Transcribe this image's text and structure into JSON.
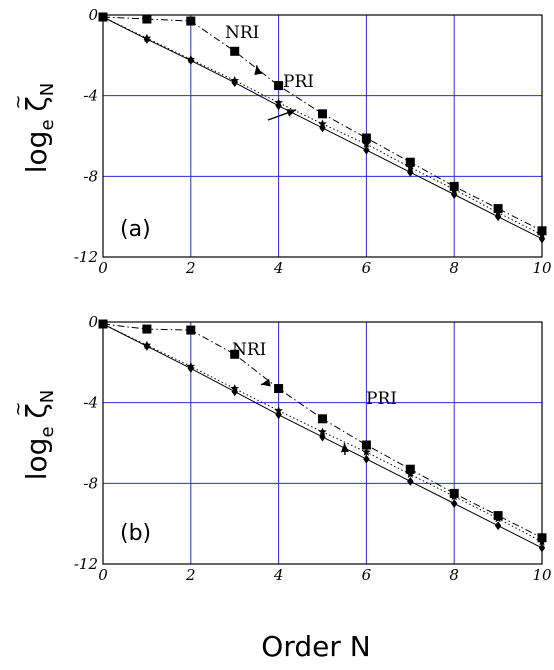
{
  "figure": {
    "xlabel": "Order  N",
    "ylabel_main": "log",
    "ylabel_sub": "e",
    "ylabel_symbol": "ζ",
    "ylabel_tilde": "~",
    "ylabel_index": "N"
  },
  "colors": {
    "grid": "#2b2bd6",
    "frame": "#000000",
    "marker": "#000000"
  },
  "chart_data": [
    {
      "type": "line",
      "panel_label": "(a)",
      "x": [
        0,
        1,
        2,
        3,
        4,
        5,
        6,
        7,
        8,
        9,
        10
      ],
      "xlim": [
        0,
        10
      ],
      "ylim": [
        -12,
        0
      ],
      "xticks": [
        "0",
        "2",
        "4",
        "6",
        "8",
        "10"
      ],
      "yticks": [
        "0",
        "-4",
        "-8",
        "-12"
      ],
      "grid": true,
      "series": [
        {
          "marker": "square",
          "style": "dash-dot",
          "values": [
            -0.1,
            -0.2,
            -0.3,
            -1.8,
            -3.5,
            -4.9,
            -6.1,
            -7.3,
            -8.5,
            -9.6,
            -10.7
          ]
        },
        {
          "marker": "star",
          "style": "dotted",
          "values": [
            -0.1,
            -1.15,
            -2.2,
            -3.25,
            -4.35,
            -5.4,
            -6.4,
            -7.55,
            -8.65,
            -9.8,
            -10.9
          ]
        },
        {
          "marker": "diamond",
          "style": "solid",
          "values": [
            -0.1,
            -1.2,
            -2.25,
            -3.35,
            -4.5,
            -5.6,
            -6.7,
            -7.8,
            -8.9,
            -10.0,
            -11.1
          ]
        }
      ],
      "annotations": [
        {
          "text": "NRI",
          "point_to": [
            3.5,
            -2.5
          ]
        },
        {
          "text": "PRI",
          "point_to": [
            4.4,
            -4.7
          ]
        }
      ]
    },
    {
      "type": "line",
      "panel_label": "(b)",
      "x": [
        0,
        1,
        2,
        3,
        4,
        5,
        6,
        7,
        8,
        9,
        10
      ],
      "xlim": [
        0,
        10
      ],
      "ylim": [
        -12,
        0
      ],
      "xticks": [
        "0",
        "2",
        "4",
        "6",
        "8",
        "10"
      ],
      "yticks": [
        "0",
        "-4",
        "-8",
        "-12"
      ],
      "grid": true,
      "series": [
        {
          "marker": "square",
          "style": "dash-dot",
          "values": [
            -0.1,
            -0.35,
            -0.4,
            -1.6,
            -3.3,
            -4.8,
            -6.1,
            -7.3,
            -8.5,
            -9.6,
            -10.7
          ]
        },
        {
          "marker": "star",
          "style": "dotted",
          "values": [
            -0.1,
            -1.15,
            -2.2,
            -3.3,
            -4.4,
            -5.45,
            -6.45,
            -7.55,
            -8.65,
            -9.75,
            -10.9
          ]
        },
        {
          "marker": "diamond",
          "style": "solid",
          "values": [
            -0.1,
            -1.2,
            -2.3,
            -3.45,
            -4.6,
            -5.7,
            -6.8,
            -7.9,
            -9.0,
            -10.1,
            -11.2
          ]
        }
      ],
      "annotations": [
        {
          "text": "NRI",
          "point_to": [
            3.6,
            -3.1
          ]
        },
        {
          "text": "PRI",
          "point_to": [
            5.5,
            -6.0
          ]
        }
      ]
    }
  ]
}
